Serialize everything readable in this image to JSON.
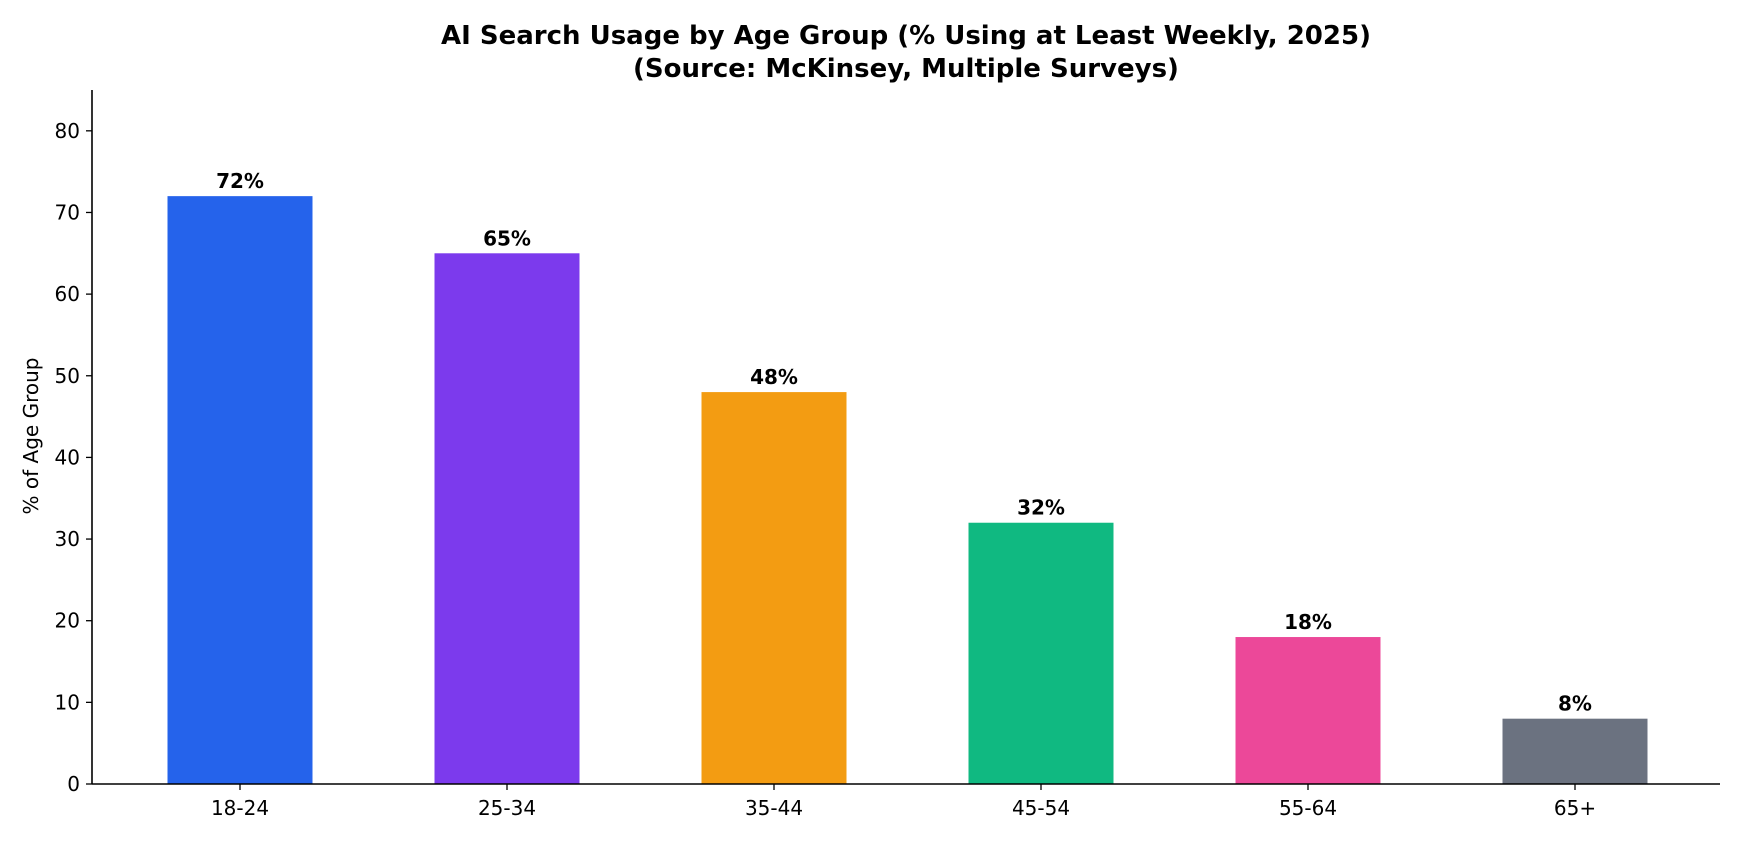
{
  "chart_data": {
    "type": "bar",
    "title": "AI Search Usage by Age Group (% Using at Least Weekly, 2025)",
    "subtitle": "(Source: McKinsey, Multiple Surveys)",
    "xlabel": "",
    "ylabel": "% of Age Group",
    "categories": [
      "18-24",
      "25-34",
      "35-44",
      "45-54",
      "55-64",
      "65+"
    ],
    "values": [
      72,
      65,
      48,
      32,
      18,
      8
    ],
    "data_labels": [
      "72%",
      "65%",
      "48%",
      "32%",
      "18%",
      "8%"
    ],
    "colors": [
      "#2563eb",
      "#7c3aed",
      "#f39c12",
      "#10b981",
      "#ec4899",
      "#6b7280"
    ],
    "ylim": [
      0,
      85
    ],
    "yticks": [
      0,
      10,
      20,
      30,
      40,
      50,
      60,
      70,
      80
    ],
    "grid": false,
    "legend": "none"
  }
}
